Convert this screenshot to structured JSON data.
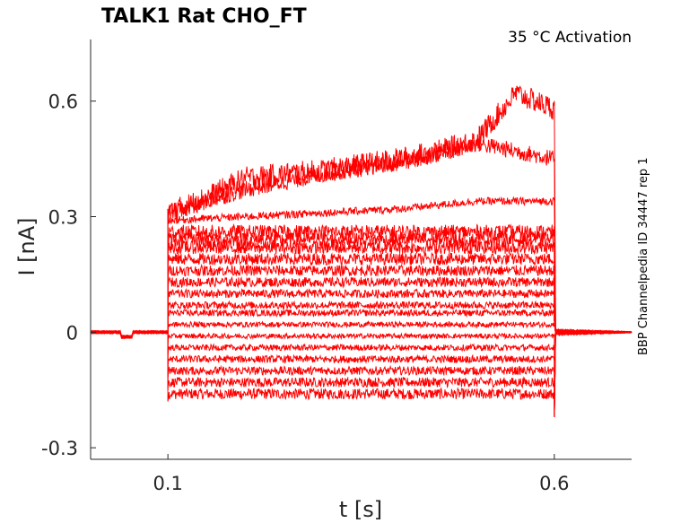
{
  "chart_data": {
    "type": "line",
    "title": "TALK1  Rat  CHO_FT",
    "annotation": "35 °C  Activation",
    "side_label": "BBP Channelpedia ID 34447 rep 1",
    "xlabel": "t [s]",
    "ylabel": "I [nA]",
    "xlim": [
      0.0,
      0.7
    ],
    "ylim": [
      -0.33,
      0.76
    ],
    "xticks": [
      0.1,
      0.6
    ],
    "xtick_labels": [
      "0.1",
      "0.6"
    ],
    "yticks": [
      -0.3,
      0,
      0.3,
      0.6
    ],
    "ytick_labels": [
      "-0.3",
      "0",
      "0.3",
      "0.6"
    ],
    "grid": false,
    "line_color": "#ff0000",
    "stimulus": {
      "on": 0.1,
      "off": 0.6
    },
    "series_pulse_levels": [
      -0.16,
      -0.13,
      -0.1,
      -0.07,
      -0.04,
      -0.01,
      0.02,
      0.05,
      0.07,
      0.1,
      0.13,
      0.16,
      0.19,
      0.22,
      0.24,
      0.26
    ],
    "series_upper": [
      {
        "t": [
          0.1,
          0.15,
          0.2,
          0.3,
          0.4,
          0.45,
          0.5,
          0.55,
          0.6
        ],
        "i": [
          0.31,
          0.35,
          0.4,
          0.42,
          0.45,
          0.47,
          0.5,
          0.62,
          0.58
        ]
      },
      {
        "t": [
          0.1,
          0.2,
          0.3,
          0.4,
          0.5,
          0.6
        ],
        "i": [
          0.31,
          0.37,
          0.41,
          0.44,
          0.49,
          0.45
        ]
      },
      {
        "t": [
          0.1,
          0.2,
          0.3,
          0.4,
          0.5,
          0.6
        ],
        "i": [
          0.29,
          0.3,
          0.31,
          0.32,
          0.34,
          0.34
        ]
      }
    ]
  }
}
